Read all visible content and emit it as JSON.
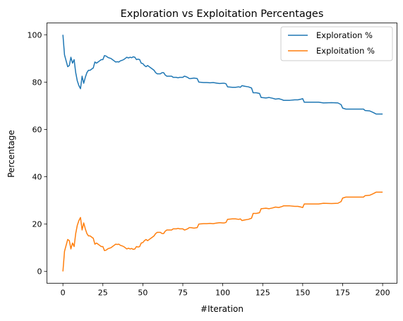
{
  "chart_data": {
    "type": "line",
    "title": "Exploration vs Exploitation Percentages",
    "xlabel": "#Iteration",
    "ylabel": "Percentage",
    "xlim": [
      -10,
      209
    ],
    "ylim": [
      -5,
      105
    ],
    "xticks": [
      0,
      25,
      50,
      75,
      100,
      125,
      150,
      175,
      200
    ],
    "yticks": [
      0,
      20,
      40,
      60,
      80,
      100
    ],
    "grid": false,
    "legend": "top-right",
    "series": [
      {
        "name": "Exploration %",
        "color": "#1f77b4",
        "points": [
          [
            0,
            100
          ],
          [
            1,
            91.5
          ],
          [
            2,
            89
          ],
          [
            3,
            86.5
          ],
          [
            4,
            87
          ],
          [
            5,
            90.5
          ],
          [
            6,
            88
          ],
          [
            7,
            89.5
          ],
          [
            8,
            84
          ],
          [
            9,
            80.5
          ],
          [
            10,
            78.5
          ],
          [
            11,
            77.2
          ],
          [
            12,
            82.5
          ],
          [
            13,
            79.5
          ],
          [
            14,
            82
          ],
          [
            15,
            84
          ],
          [
            16,
            85
          ],
          [
            17,
            85
          ],
          [
            18,
            85.5
          ],
          [
            19,
            86
          ],
          [
            20,
            88.5
          ],
          [
            21,
            88
          ],
          [
            22,
            88.5
          ],
          [
            23,
            89
          ],
          [
            24,
            89.5
          ],
          [
            25,
            89.5
          ],
          [
            26,
            91.2
          ],
          [
            27,
            91
          ],
          [
            28,
            90.5
          ],
          [
            29,
            90.2
          ],
          [
            30,
            90
          ],
          [
            31,
            89.5
          ],
          [
            32,
            89
          ],
          [
            33,
            88.5
          ],
          [
            34,
            88.6
          ],
          [
            35,
            88.5
          ],
          [
            36,
            89
          ],
          [
            37,
            89.2
          ],
          [
            38,
            89.5
          ],
          [
            39,
            90
          ],
          [
            40,
            90.5
          ],
          [
            41,
            90.2
          ],
          [
            42,
            90.5
          ],
          [
            43,
            90.3
          ],
          [
            44,
            90.7
          ],
          [
            45,
            90.5
          ],
          [
            46,
            89.5
          ],
          [
            47,
            89.7
          ],
          [
            48,
            89.5
          ],
          [
            49,
            88
          ],
          [
            50,
            87.8
          ],
          [
            51,
            87
          ],
          [
            52,
            86.5
          ],
          [
            53,
            87
          ],
          [
            54,
            86.5
          ],
          [
            55,
            86
          ],
          [
            56,
            85.5
          ],
          [
            57,
            85
          ],
          [
            58,
            84
          ],
          [
            59,
            83.5
          ],
          [
            60,
            83.5
          ],
          [
            61,
            83.5
          ],
          [
            62,
            84
          ],
          [
            63,
            84
          ],
          [
            64,
            83
          ],
          [
            65,
            82.5
          ],
          [
            66,
            82.5
          ],
          [
            67,
            82.5
          ],
          [
            68,
            82.5
          ],
          [
            69,
            82
          ],
          [
            70,
            82
          ],
          [
            71,
            82
          ],
          [
            72,
            81.8
          ],
          [
            73,
            82
          ],
          [
            74,
            82
          ],
          [
            75,
            82
          ],
          [
            76,
            82.5
          ],
          [
            77,
            82.3
          ],
          [
            78,
            82
          ],
          [
            79,
            81.5
          ],
          [
            80,
            81.5
          ],
          [
            82,
            81.7
          ],
          [
            84,
            81.5
          ],
          [
            85,
            80
          ],
          [
            88,
            79.8
          ],
          [
            90,
            79.8
          ],
          [
            92,
            79.7
          ],
          [
            94,
            79.8
          ],
          [
            96,
            79.6
          ],
          [
            98,
            79.4
          ],
          [
            100,
            79.5
          ],
          [
            101,
            79.5
          ],
          [
            102,
            79.3
          ],
          [
            103,
            78
          ],
          [
            106,
            77.8
          ],
          [
            108,
            77.8
          ],
          [
            110,
            78
          ],
          [
            111,
            77.8
          ],
          [
            112,
            78.5
          ],
          [
            114,
            78.2
          ],
          [
            116,
            78
          ],
          [
            118,
            77.5
          ],
          [
            119,
            75.5
          ],
          [
            121,
            75.5
          ],
          [
            123,
            75.2
          ],
          [
            124,
            73.5
          ],
          [
            127,
            73.3
          ],
          [
            129,
            73.5
          ],
          [
            131,
            73.2
          ],
          [
            133,
            72.8
          ],
          [
            135,
            73
          ],
          [
            137,
            72.6
          ],
          [
            138,
            72.3
          ],
          [
            142,
            72.3
          ],
          [
            145,
            72.5
          ],
          [
            147,
            72.5
          ],
          [
            149,
            72.8
          ],
          [
            150,
            73
          ],
          [
            151,
            71.5
          ],
          [
            155,
            71.5
          ],
          [
            160,
            71.5
          ],
          [
            163,
            71.2
          ],
          [
            168,
            71.3
          ],
          [
            172,
            71.2
          ],
          [
            174,
            70.5
          ],
          [
            175,
            69
          ],
          [
            177,
            68.6
          ],
          [
            180,
            68.6
          ],
          [
            185,
            68.6
          ],
          [
            188,
            68.6
          ],
          [
            189,
            68
          ],
          [
            192,
            67.8
          ],
          [
            194,
            67.2
          ],
          [
            196,
            66.5
          ],
          [
            198,
            66.5
          ],
          [
            200,
            66.5
          ]
        ]
      },
      {
        "name": "Exploitation %",
        "color": "#ff7f0e",
        "points": [
          [
            0,
            0
          ],
          [
            1,
            8.5
          ],
          [
            2,
            11
          ],
          [
            3,
            13.5
          ],
          [
            4,
            13
          ],
          [
            5,
            9.5
          ],
          [
            6,
            12
          ],
          [
            7,
            10.5
          ],
          [
            8,
            16
          ],
          [
            9,
            19.5
          ],
          [
            10,
            21.5
          ],
          [
            11,
            22.8
          ],
          [
            12,
            17.5
          ],
          [
            13,
            20.5
          ],
          [
            14,
            18
          ],
          [
            15,
            16
          ],
          [
            16,
            15
          ],
          [
            17,
            15
          ],
          [
            18,
            14.5
          ],
          [
            19,
            14
          ],
          [
            20,
            11.5
          ],
          [
            21,
            12
          ],
          [
            22,
            11.5
          ],
          [
            23,
            11
          ],
          [
            24,
            10.5
          ],
          [
            25,
            10.5
          ],
          [
            26,
            8.8
          ],
          [
            27,
            9
          ],
          [
            28,
            9.5
          ],
          [
            29,
            9.8
          ],
          [
            30,
            10
          ],
          [
            31,
            10.5
          ],
          [
            32,
            11
          ],
          [
            33,
            11.5
          ],
          [
            34,
            11.4
          ],
          [
            35,
            11.5
          ],
          [
            36,
            11
          ],
          [
            37,
            10.8
          ],
          [
            38,
            10.5
          ],
          [
            39,
            10
          ],
          [
            40,
            9.5
          ],
          [
            41,
            9.8
          ],
          [
            42,
            9.5
          ],
          [
            43,
            9.7
          ],
          [
            44,
            9.3
          ],
          [
            45,
            9.5
          ],
          [
            46,
            10.5
          ],
          [
            47,
            10.3
          ],
          [
            48,
            10.5
          ],
          [
            49,
            12
          ],
          [
            50,
            12.2
          ],
          [
            51,
            13
          ],
          [
            52,
            13.5
          ],
          [
            53,
            13
          ],
          [
            54,
            13.5
          ],
          [
            55,
            14
          ],
          [
            56,
            14.5
          ],
          [
            57,
            15
          ],
          [
            58,
            16
          ],
          [
            59,
            16.5
          ],
          [
            60,
            16.5
          ],
          [
            61,
            16.5
          ],
          [
            62,
            16
          ],
          [
            63,
            16
          ],
          [
            64,
            17
          ],
          [
            65,
            17.5
          ],
          [
            66,
            17.5
          ],
          [
            67,
            17.5
          ],
          [
            68,
            17.5
          ],
          [
            69,
            18
          ],
          [
            70,
            18
          ],
          [
            71,
            18
          ],
          [
            72,
            18.2
          ],
          [
            73,
            18
          ],
          [
            74,
            18
          ],
          [
            75,
            18
          ],
          [
            76,
            17.5
          ],
          [
            77,
            17.7
          ],
          [
            78,
            18
          ],
          [
            79,
            18.5
          ],
          [
            80,
            18.5
          ],
          [
            82,
            18.3
          ],
          [
            84,
            18.5
          ],
          [
            85,
            20
          ],
          [
            88,
            20.2
          ],
          [
            90,
            20.2
          ],
          [
            92,
            20.3
          ],
          [
            94,
            20.2
          ],
          [
            96,
            20.4
          ],
          [
            98,
            20.6
          ],
          [
            100,
            20.5
          ],
          [
            101,
            20.5
          ],
          [
            102,
            20.7
          ],
          [
            103,
            22
          ],
          [
            106,
            22.2
          ],
          [
            108,
            22.2
          ],
          [
            110,
            22
          ],
          [
            111,
            22.2
          ],
          [
            112,
            21.5
          ],
          [
            114,
            21.8
          ],
          [
            116,
            22
          ],
          [
            118,
            22.5
          ],
          [
            119,
            24.5
          ],
          [
            121,
            24.5
          ],
          [
            123,
            24.8
          ],
          [
            124,
            26.5
          ],
          [
            127,
            26.7
          ],
          [
            129,
            26.5
          ],
          [
            131,
            26.8
          ],
          [
            133,
            27.2
          ],
          [
            135,
            27
          ],
          [
            137,
            27.4
          ],
          [
            138,
            27.7
          ],
          [
            142,
            27.7
          ],
          [
            145,
            27.5
          ],
          [
            147,
            27.5
          ],
          [
            149,
            27.2
          ],
          [
            150,
            27
          ],
          [
            151,
            28.5
          ],
          [
            155,
            28.5
          ],
          [
            160,
            28.5
          ],
          [
            163,
            28.8
          ],
          [
            168,
            28.7
          ],
          [
            172,
            28.8
          ],
          [
            174,
            29.5
          ],
          [
            175,
            31
          ],
          [
            177,
            31.4
          ],
          [
            180,
            31.4
          ],
          [
            185,
            31.4
          ],
          [
            188,
            31.4
          ],
          [
            189,
            32
          ],
          [
            192,
            32.2
          ],
          [
            194,
            32.8
          ],
          [
            196,
            33.5
          ],
          [
            198,
            33.5
          ],
          [
            200,
            33.5
          ]
        ]
      }
    ]
  }
}
